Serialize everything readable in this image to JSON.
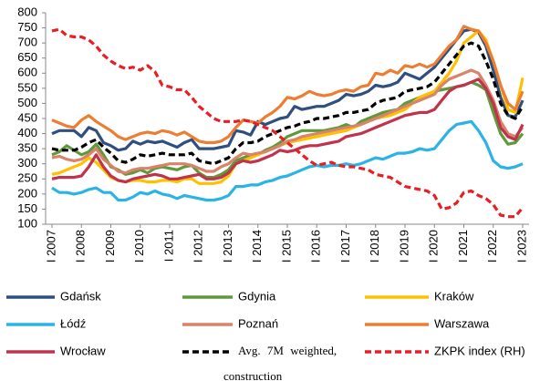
{
  "chart_data": {
    "type": "line",
    "categories": [
      "I 2007",
      null,
      null,
      null,
      "I 2008",
      null,
      null,
      null,
      "I 2009",
      null,
      null,
      null,
      "I 2010",
      null,
      null,
      null,
      "I 2011",
      null,
      null,
      null,
      "I 2012",
      null,
      null,
      null,
      "I 2013",
      null,
      null,
      null,
      "I 2014",
      null,
      null,
      null,
      "I 2015",
      null,
      null,
      null,
      "I 2016",
      null,
      null,
      null,
      "I 2017",
      null,
      null,
      null,
      "I 2018",
      null,
      null,
      null,
      "I 2019",
      null,
      null,
      null,
      "I 2020",
      null,
      null,
      null,
      "I 2021",
      null,
      null,
      null,
      "I 2022",
      null,
      null,
      null,
      "I 2023"
    ],
    "ylim": [
      100,
      800
    ],
    "yticks": [
      100,
      150,
      200,
      250,
      300,
      350,
      400,
      450,
      500,
      550,
      600,
      650,
      700,
      750,
      800
    ],
    "grid": false,
    "legend": "bottom",
    "series": [
      {
        "name": "Gdańsk",
        "color": "#2e4f7f",
        "style": "solid",
        "values": [
          400,
          410,
          410,
          410,
          390,
          420,
          410,
          370,
          360,
          345,
          350,
          375,
          365,
          375,
          370,
          375,
          365,
          355,
          370,
          380,
          350,
          350,
          350,
          355,
          360,
          410,
          405,
          395,
          440,
          430,
          440,
          450,
          455,
          490,
          480,
          485,
          490,
          490,
          500,
          510,
          530,
          525,
          530,
          540,
          560,
          555,
          560,
          570,
          600,
          590,
          580,
          600,
          620,
          650,
          680,
          710,
          740,
          745,
          735,
          690,
          610,
          520,
          460,
          455,
          510
        ]
      },
      {
        "name": "Gdynia",
        "color": "#5e9a3b",
        "style": "solid",
        "values": [
          330,
          340,
          360,
          345,
          330,
          340,
          365,
          330,
          290,
          280,
          265,
          270,
          280,
          270,
          285,
          290,
          285,
          280,
          290,
          295,
          270,
          255,
          255,
          265,
          280,
          310,
          320,
          330,
          330,
          345,
          355,
          370,
          390,
          400,
          410,
          410,
          410,
          410,
          415,
          420,
          430,
          420,
          440,
          450,
          460,
          470,
          475,
          480,
          500,
          510,
          520,
          530,
          540,
          545,
          550,
          555,
          560,
          570,
          560,
          545,
          470,
          400,
          365,
          370,
          400
        ]
      },
      {
        "name": "Kraków",
        "color": "#ffc000",
        "style": "solid",
        "values": [
          265,
          270,
          280,
          290,
          300,
          320,
          305,
          280,
          255,
          245,
          240,
          245,
          245,
          240,
          240,
          245,
          245,
          240,
          250,
          250,
          235,
          235,
          235,
          240,
          260,
          300,
          310,
          320,
          330,
          340,
          350,
          360,
          370,
          375,
          380,
          385,
          390,
          395,
          400,
          405,
          410,
          420,
          430,
          440,
          450,
          455,
          460,
          470,
          480,
          500,
          520,
          530,
          540,
          570,
          600,
          640,
          700,
          720,
          740,
          710,
          640,
          560,
          480,
          470,
          585
        ]
      },
      {
        "name": "Łódź",
        "color": "#2bb3e6",
        "style": "solid",
        "values": [
          220,
          205,
          205,
          200,
          205,
          215,
          220,
          205,
          205,
          180,
          180,
          190,
          205,
          200,
          210,
          200,
          195,
          185,
          195,
          190,
          185,
          180,
          180,
          185,
          195,
          225,
          225,
          230,
          230,
          240,
          245,
          255,
          260,
          270,
          280,
          290,
          295,
          290,
          295,
          295,
          300,
          295,
          300,
          310,
          320,
          315,
          325,
          335,
          335,
          340,
          350,
          345,
          350,
          380,
          410,
          430,
          435,
          440,
          410,
          370,
          310,
          290,
          285,
          290,
          300
        ]
      },
      {
        "name": "Poznań",
        "color": "#d9836a",
        "style": "solid",
        "values": [
          320,
          325,
          315,
          310,
          315,
          330,
          350,
          315,
          295,
          275,
          270,
          280,
          285,
          285,
          290,
          295,
          300,
          300,
          300,
          295,
          285,
          275,
          275,
          290,
          300,
          320,
          335,
          330,
          335,
          340,
          350,
          360,
          375,
          380,
          390,
          395,
          400,
          405,
          410,
          415,
          420,
          425,
          430,
          440,
          450,
          460,
          470,
          480,
          490,
          500,
          510,
          520,
          530,
          560,
          580,
          590,
          600,
          610,
          600,
          560,
          510,
          440,
          400,
          390,
          420
        ]
      },
      {
        "name": "Warszawa",
        "color": "#ed7d31",
        "style": "solid",
        "values": [
          445,
          435,
          425,
          420,
          445,
          460,
          440,
          425,
          410,
          390,
          380,
          390,
          400,
          405,
          400,
          410,
          405,
          395,
          405,
          390,
          375,
          370,
          370,
          375,
          390,
          420,
          445,
          440,
          435,
          455,
          470,
          490,
          520,
          515,
          525,
          540,
          530,
          525,
          530,
          540,
          545,
          540,
          555,
          560,
          600,
          595,
          610,
          600,
          625,
          620,
          630,
          620,
          630,
          660,
          690,
          710,
          755,
          745,
          740,
          700,
          640,
          560,
          500,
          480,
          540
        ]
      },
      {
        "name": "Wrocław",
        "color": "#c0334d",
        "style": "solid",
        "values": [
          250,
          255,
          255,
          255,
          260,
          290,
          330,
          290,
          260,
          245,
          240,
          250,
          255,
          260,
          265,
          260,
          250,
          250,
          255,
          260,
          265,
          250,
          250,
          255,
          270,
          300,
          310,
          305,
          310,
          320,
          330,
          345,
          340,
          345,
          355,
          360,
          360,
          365,
          370,
          375,
          390,
          395,
          400,
          410,
          420,
          430,
          440,
          450,
          460,
          465,
          470,
          470,
          480,
          510,
          540,
          555,
          560,
          570,
          580,
          550,
          500,
          420,
          390,
          380,
          430
        ]
      },
      {
        "name": "Avg. 7M weighted, construction",
        "color": "#000000",
        "style": "dashed",
        "values": [
          350,
          345,
          345,
          345,
          355,
          370,
          380,
          355,
          335,
          310,
          305,
          315,
          330,
          325,
          330,
          335,
          330,
          330,
          330,
          335,
          310,
          305,
          300,
          310,
          320,
          350,
          370,
          370,
          375,
          390,
          400,
          410,
          420,
          425,
          435,
          440,
          450,
          450,
          455,
          460,
          470,
          470,
          475,
          480,
          500,
          510,
          515,
          520,
          540,
          545,
          550,
          555,
          570,
          600,
          630,
          660,
          690,
          700,
          690,
          640,
          580,
          500,
          460,
          450,
          490
        ]
      },
      {
        "name": "ZKPK index (RH)",
        "color": "#e81e25",
        "style": "dashed",
        "values": [
          740,
          745,
          725,
          720,
          720,
          710,
          690,
          660,
          640,
          625,
          615,
          620,
          610,
          625,
          605,
          560,
          555,
          545,
          545,
          520,
          490,
          470,
          450,
          440,
          440,
          440,
          445,
          440,
          430,
          420,
          410,
          390,
          370,
          350,
          330,
          310,
          295,
          300,
          305,
          295,
          290,
          290,
          285,
          280,
          265,
          260,
          255,
          240,
          225,
          220,
          215,
          210,
          195,
          150,
          155,
          170,
          205,
          210,
          195,
          185,
          165,
          130,
          125,
          125,
          155
        ]
      }
    ]
  }
}
